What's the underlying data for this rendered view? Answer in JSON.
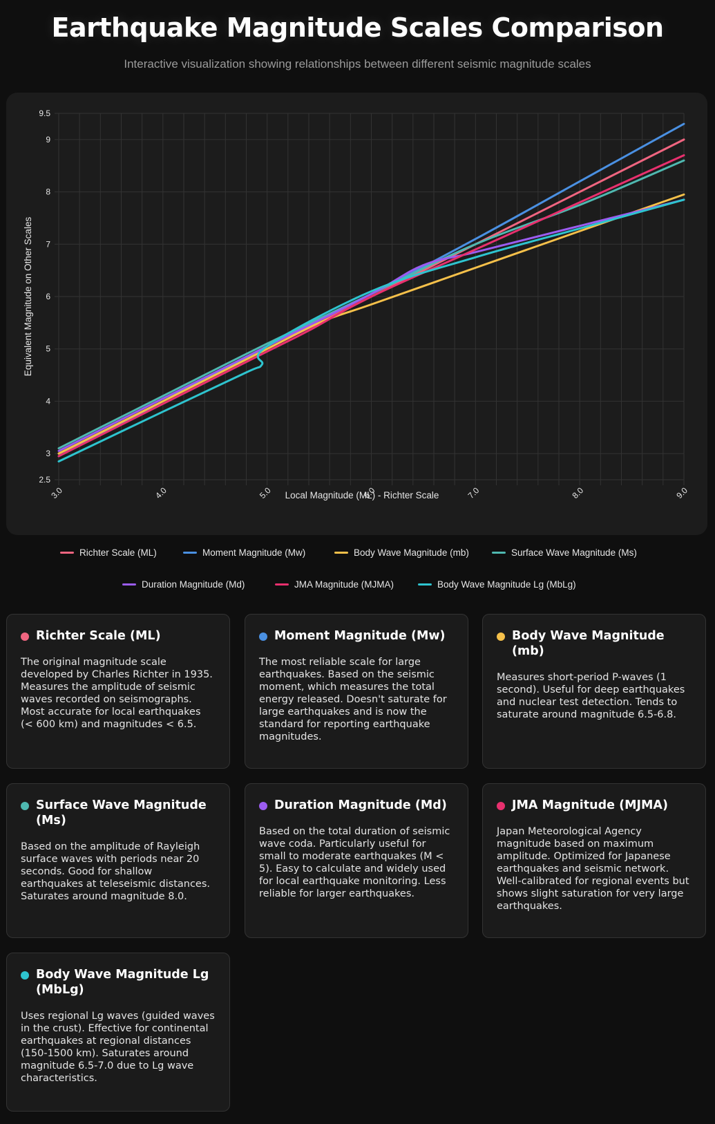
{
  "header": {
    "title": "Earthquake Magnitude Scales Comparison",
    "subtitle": "Interactive visualization showing relationships between different seismic magnitude scales"
  },
  "chart_data": {
    "type": "line",
    "xlabel": "Local Magnitude (ML) - Richter Scale",
    "ylabel": "Equivalent Magnitude on Other Scales",
    "xlim": [
      3.0,
      9.0
    ],
    "ylim": [
      2.5,
      9.5
    ],
    "x_ticks": [
      "3.0",
      "4.0",
      "5.0",
      "6.0",
      "7.0",
      "8.0",
      "9.0"
    ],
    "y_ticks": [
      "2.5",
      "3",
      "4",
      "5",
      "6",
      "7",
      "8",
      "9",
      "9.5"
    ],
    "grid": true,
    "legend_position": "bottom",
    "series": [
      {
        "name": "Richter Scale (ML)",
        "color": "#f06580",
        "x": [
          3.0,
          4.0,
          5.0,
          6.0,
          7.0,
          8.0,
          9.0
        ],
        "y": [
          3.0,
          4.0,
          5.0,
          6.0,
          7.0,
          8.0,
          9.0
        ]
      },
      {
        "name": "Moment Magnitude (Mw)",
        "color": "#4a90e2",
        "x": [
          3.0,
          4.0,
          5.0,
          6.0,
          7.0,
          8.0,
          9.0
        ],
        "y": [
          2.95,
          4.0,
          5.05,
          6.05,
          7.1,
          8.2,
          9.3
        ]
      },
      {
        "name": "Body Wave Magnitude (mb)",
        "color": "#f5c04a",
        "x": [
          3.0,
          4.0,
          5.0,
          5.5,
          6.0,
          7.0,
          8.0,
          9.0
        ],
        "y": [
          3.0,
          4.0,
          5.0,
          5.5,
          5.85,
          6.55,
          7.25,
          7.95
        ]
      },
      {
        "name": "Surface Wave Magnitude (Ms)",
        "color": "#4fb8b0",
        "x": [
          3.0,
          4.0,
          5.0,
          6.0,
          7.0,
          8.0,
          9.0
        ],
        "y": [
          3.1,
          4.1,
          5.1,
          6.05,
          7.0,
          7.75,
          8.6
        ]
      },
      {
        "name": "Duration Magnitude (Md)",
        "color": "#9b5cf0",
        "x": [
          3.0,
          4.0,
          5.0,
          6.0,
          6.5,
          7.0,
          8.0,
          9.0
        ],
        "y": [
          3.05,
          4.05,
          5.05,
          6.05,
          6.6,
          6.85,
          7.35,
          7.85
        ]
      },
      {
        "name": "JMA Magnitude (MJMA)",
        "color": "#e8306e",
        "x": [
          3.0,
          4.0,
          5.0,
          5.4,
          6.0,
          7.0,
          8.0,
          9.0
        ],
        "y": [
          2.95,
          3.95,
          4.95,
          5.35,
          6.0,
          6.9,
          7.8,
          8.7
        ]
      },
      {
        "name": "Body Wave Magnitude Lg (MbLg)",
        "color": "#2ec4cf",
        "x": [
          3.0,
          4.0,
          4.8,
          4.95,
          5.0,
          6.0,
          7.0,
          8.0,
          9.0
        ],
        "y": [
          2.85,
          3.8,
          4.55,
          4.7,
          5.05,
          6.1,
          6.75,
          7.3,
          7.85
        ]
      }
    ]
  },
  "legend": [
    {
      "label": "Richter Scale (ML)",
      "color": "#f06580"
    },
    {
      "label": "Moment Magnitude (Mw)",
      "color": "#4a90e2"
    },
    {
      "label": "Body Wave Magnitude (mb)",
      "color": "#f5c04a"
    },
    {
      "label": "Surface Wave Magnitude (Ms)",
      "color": "#4fb8b0"
    },
    {
      "label": "Duration Magnitude (Md)",
      "color": "#9b5cf0"
    },
    {
      "label": "JMA Magnitude (MJMA)",
      "color": "#e8306e"
    },
    {
      "label": "Body Wave Magnitude Lg (MbLg)",
      "color": "#2ec4cf"
    }
  ],
  "cards": [
    {
      "title": "Richter Scale (ML)",
      "color": "#f06580",
      "desc": "The original magnitude scale developed by Charles Richter in 1935. Measures the amplitude of seismic waves recorded on seismographs. Most accurate for local earthquakes (< 600 km) and magnitudes < 6.5."
    },
    {
      "title": "Moment Magnitude (Mw)",
      "color": "#4a90e2",
      "desc": "The most reliable scale for large earthquakes. Based on the seismic moment, which measures the total energy released. Doesn't saturate for large earthquakes and is now the standard for reporting earthquake magnitudes."
    },
    {
      "title": "Body Wave Magnitude (mb)",
      "color": "#f5c04a",
      "desc": "Measures short-period P-waves (1 second). Useful for deep earthquakes and nuclear test detection. Tends to saturate around magnitude 6.5-6.8."
    },
    {
      "title": "Surface Wave Magnitude (Ms)",
      "color": "#4fb8b0",
      "desc": "Based on the amplitude of Rayleigh surface waves with periods near 20 seconds. Good for shallow earthquakes at teleseismic distances. Saturates around magnitude 8.0."
    },
    {
      "title": "Duration Magnitude (Md)",
      "color": "#9b5cf0",
      "desc": "Based on the total duration of seismic wave coda. Particularly useful for small to moderate earthquakes (M < 5). Easy to calculate and widely used for local earthquake monitoring. Less reliable for larger earthquakes."
    },
    {
      "title": "JMA Magnitude (MJMA)",
      "color": "#e8306e",
      "desc": "Japan Meteorological Agency magnitude based on maximum amplitude. Optimized for Japanese earthquakes and seismic network. Well-calibrated for regional events but shows slight saturation for very large earthquakes."
    },
    {
      "title": "Body Wave Magnitude Lg (MbLg)",
      "color": "#2ec4cf",
      "desc": "Uses regional Lg waves (guided waves in the crust). Effective for continental earthquakes at regional distances (150-1500 km). Saturates around magnitude 6.5-7.0 due to Lg wave characteristics."
    }
  ]
}
